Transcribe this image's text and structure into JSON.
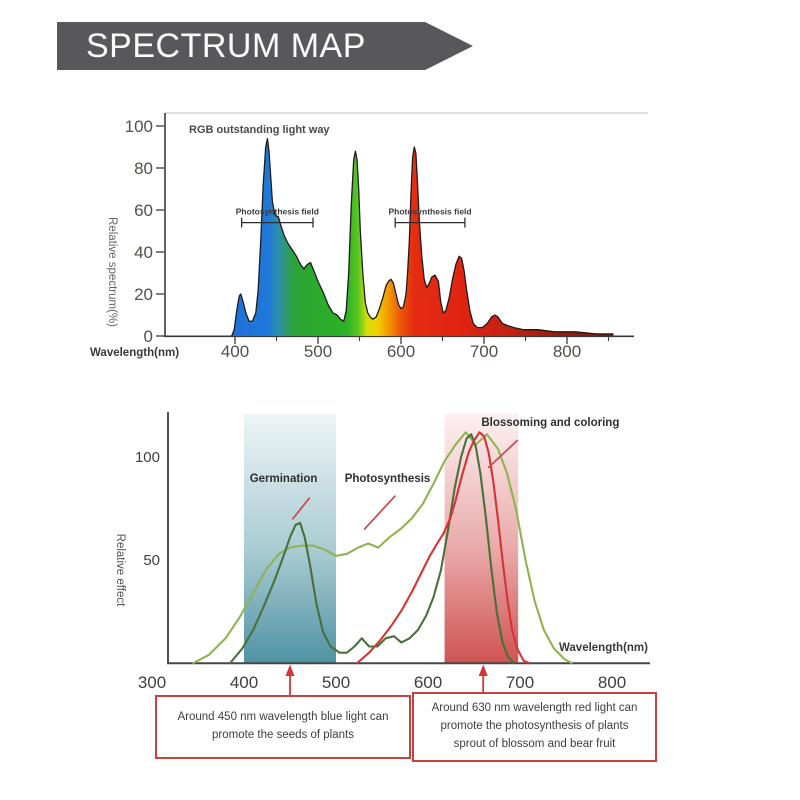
{
  "header": {
    "title": "SPECTRUM MAP",
    "banner_color": "#58585a",
    "text_color": "#fbfbfb"
  },
  "colors": {
    "accent_red": "#c94040",
    "axis": "#3a3a3a",
    "tick_text": "#554f49",
    "teal_band_bottom": "#4f93a4",
    "red_band_bottom": "#d05353"
  },
  "chart_data": [
    {
      "type": "area",
      "name": "rgb-spectrum-chart",
      "annotation_title": "RGB outstanding light way",
      "xlabel": "Wavelength(nm)",
      "ylabel": "Relative spectrum(%)",
      "xlim": [
        390,
        865
      ],
      "ylim": [
        0,
        105
      ],
      "x_ticks": [
        400,
        500,
        600,
        700,
        800
      ],
      "x_minor_ticks": [
        450,
        550,
        650,
        750,
        850
      ],
      "y_ticks": [
        0,
        20,
        40,
        60,
        80,
        100
      ],
      "grid": false,
      "brackets": [
        {
          "label": "Photosynthesis field",
          "x_start": 408,
          "x_end": 494,
          "y": 54
        },
        {
          "label": "Photosynthesis field",
          "x_start": 593,
          "x_end": 677,
          "y": 54
        }
      ],
      "series": [
        {
          "name": "spectrum",
          "points": [
            [
              396,
              0
            ],
            [
              399,
              3
            ],
            [
              402,
              12
            ],
            [
              405,
              19
            ],
            [
              407,
              20
            ],
            [
              410,
              16
            ],
            [
              413,
              11
            ],
            [
              417,
              7
            ],
            [
              421,
              7
            ],
            [
              425,
              11
            ],
            [
              428,
              22
            ],
            [
              431,
              45
            ],
            [
              434,
              72
            ],
            [
              437,
              90
            ],
            [
              439,
              94
            ],
            [
              441,
              88
            ],
            [
              443,
              76
            ],
            [
              445,
              64
            ],
            [
              448,
              58
            ],
            [
              450,
              57
            ],
            [
              452,
              57
            ],
            [
              455,
              53
            ],
            [
              459,
              48
            ],
            [
              464,
              44
            ],
            [
              469,
              41
            ],
            [
              474,
              38
            ],
            [
              479,
              34
            ],
            [
              483,
              32
            ],
            [
              487,
              34
            ],
            [
              491,
              35
            ],
            [
              495,
              31
            ],
            [
              500,
              26
            ],
            [
              506,
              21
            ],
            [
              512,
              15
            ],
            [
              518,
              11
            ],
            [
              523,
              10
            ],
            [
              527,
              8
            ],
            [
              531,
              7
            ],
            [
              534,
              12
            ],
            [
              537,
              30
            ],
            [
              540,
              62
            ],
            [
              543,
              84
            ],
            [
              545,
              88
            ],
            [
              547,
              84
            ],
            [
              549,
              70
            ],
            [
              551,
              50
            ],
            [
              554,
              30
            ],
            [
              557,
              16
            ],
            [
              560,
              11
            ],
            [
              563,
              9
            ],
            [
              566,
              8
            ],
            [
              570,
              9
            ],
            [
              574,
              13
            ],
            [
              578,
              18
            ],
            [
              582,
              24
            ],
            [
              585,
              26
            ],
            [
              588,
              27
            ],
            [
              591,
              25
            ],
            [
              594,
              20
            ],
            [
              597,
              15
            ],
            [
              600,
              13
            ],
            [
              603,
              14
            ],
            [
              606,
              20
            ],
            [
              608,
              30
            ],
            [
              610,
              45
            ],
            [
              612,
              68
            ],
            [
              614,
              85
            ],
            [
              616,
              90
            ],
            [
              618,
              87
            ],
            [
              620,
              72
            ],
            [
              622,
              55
            ],
            [
              625,
              38
            ],
            [
              628,
              27
            ],
            [
              631,
              23
            ],
            [
              634,
              25
            ],
            [
              637,
              28
            ],
            [
              641,
              29
            ],
            [
              645,
              26
            ],
            [
              648,
              16
            ],
            [
              651,
              11
            ],
            [
              654,
              12
            ],
            [
              658,
              18
            ],
            [
              662,
              27
            ],
            [
              666,
              34
            ],
            [
              670,
              38
            ],
            [
              673,
              37
            ],
            [
              676,
              31
            ],
            [
              679,
              22
            ],
            [
              683,
              12
            ],
            [
              687,
              6
            ],
            [
              692,
              4
            ],
            [
              698,
              4
            ],
            [
              704,
              6
            ],
            [
              709,
              9
            ],
            [
              713,
              10
            ],
            [
              717,
              9
            ],
            [
              722,
              6
            ],
            [
              728,
              5
            ],
            [
              736,
              4
            ],
            [
              748,
              3
            ],
            [
              765,
              3
            ],
            [
              785,
              2
            ],
            [
              810,
              2
            ],
            [
              835,
              1
            ],
            [
              856,
              1
            ]
          ]
        }
      ]
    },
    {
      "type": "line",
      "name": "plant-light-effect-chart",
      "xlabel": "Wavelength(nm)",
      "ylabel": "Relative effect",
      "xlim": [
        300,
        855
      ],
      "ylim": [
        0,
        125
      ],
      "x_ticks": [
        300,
        400,
        500,
        600,
        700,
        800
      ],
      "y_ticks": [
        50,
        100
      ],
      "grid": false,
      "bands": [
        {
          "name": "blue-light-band",
          "x_start": 400,
          "x_end": 500,
          "color_bottom": "#4f93a4"
        },
        {
          "name": "red-light-band",
          "x_start": 618,
          "x_end": 698,
          "color_bottom": "#d05353"
        }
      ],
      "series": [
        {
          "name": "Photosynthesis",
          "color": "#8fb353",
          "points": [
            [
              345,
              0
            ],
            [
              362,
              4
            ],
            [
              380,
              12
            ],
            [
              395,
              22
            ],
            [
              410,
              34
            ],
            [
              425,
              46
            ],
            [
              438,
              53
            ],
            [
              450,
              56
            ],
            [
              462,
              57
            ],
            [
              475,
              57
            ],
            [
              488,
              55
            ],
            [
              500,
              52
            ],
            [
              512,
              53
            ],
            [
              524,
              56
            ],
            [
              535,
              58
            ],
            [
              546,
              56
            ],
            [
              558,
              61
            ],
            [
              570,
              65
            ],
            [
              582,
              70
            ],
            [
              594,
              77
            ],
            [
              606,
              87
            ],
            [
              618,
              98
            ],
            [
              630,
              106
            ],
            [
              641,
              112
            ],
            [
              652,
              106
            ],
            [
              664,
              111
            ],
            [
              676,
              104
            ],
            [
              686,
              92
            ],
            [
              696,
              74
            ],
            [
              706,
              50
            ],
            [
              716,
              30
            ],
            [
              726,
              16
            ],
            [
              737,
              7
            ],
            [
              748,
              2
            ],
            [
              756,
              0
            ]
          ]
        },
        {
          "name": "Germination",
          "color": "#49703b",
          "points": [
            [
              385,
              0
            ],
            [
              398,
              7
            ],
            [
              410,
              16
            ],
            [
              422,
              28
            ],
            [
              433,
              40
            ],
            [
              443,
              52
            ],
            [
              450,
              61
            ],
            [
              456,
              67
            ],
            [
              461,
              68
            ],
            [
              466,
              61
            ],
            [
              472,
              47
            ],
            [
              479,
              28
            ],
            [
              486,
              15
            ],
            [
              494,
              8
            ],
            [
              504,
              5
            ],
            [
              512,
              5
            ],
            [
              520,
              8
            ],
            [
              528,
              12
            ],
            [
              536,
              8
            ],
            [
              545,
              8
            ],
            [
              554,
              12
            ],
            [
              563,
              13
            ],
            [
              571,
              10
            ],
            [
              580,
              12
            ],
            [
              589,
              16
            ],
            [
              598,
              23
            ],
            [
              606,
              32
            ],
            [
              614,
              45
            ],
            [
              622,
              65
            ],
            [
              629,
              85
            ],
            [
              636,
              100
            ],
            [
              642,
              109
            ],
            [
              647,
              111
            ],
            [
              652,
              105
            ],
            [
              657,
              92
            ],
            [
              663,
              70
            ],
            [
              669,
              45
            ],
            [
              675,
              24
            ],
            [
              681,
              10
            ],
            [
              687,
              3
            ],
            [
              693,
              0
            ]
          ]
        },
        {
          "name": "Blossoming and coloring",
          "color": "#d73333",
          "points": [
            [
              523,
              0
            ],
            [
              536,
              5
            ],
            [
              548,
              11
            ],
            [
              560,
              18
            ],
            [
              572,
              26
            ],
            [
              583,
              35
            ],
            [
              593,
              44
            ],
            [
              602,
              52
            ],
            [
              610,
              58
            ],
            [
              617,
              63
            ],
            [
              624,
              70
            ],
            [
              630,
              79
            ],
            [
              637,
              91
            ],
            [
              644,
              102
            ],
            [
              650,
              108
            ],
            [
              656,
              112
            ],
            [
              661,
              110
            ],
            [
              666,
              102
            ],
            [
              671,
              88
            ],
            [
              676,
              70
            ],
            [
              681,
              50
            ],
            [
              686,
              32
            ],
            [
              691,
              17
            ],
            [
              697,
              7
            ],
            [
              704,
              1
            ],
            [
              710,
              0
            ]
          ]
        }
      ],
      "labels": [
        {
          "text": "Germination",
          "x": 443,
          "y": 86,
          "leader": [
            [
              471,
              80
            ],
            [
              453,
              70
            ]
          ]
        },
        {
          "text": "Photosynthesis",
          "x": 556,
          "y": 86,
          "leader": [
            [
              564,
              81
            ],
            [
              531,
              65
            ]
          ]
        },
        {
          "text": "Blossoming and coloring",
          "x": 733,
          "y": 113,
          "leader": [
            [
              697,
              108
            ],
            [
              666,
              95
            ]
          ]
        }
      ],
      "arrows_nm": [
        450,
        660
      ]
    }
  ],
  "notes": [
    {
      "lines": [
        "Around 450 nm wavelength blue light can",
        "promote the seeds of plants"
      ]
    },
    {
      "lines": [
        "Around 630 nm wavelength red light can",
        "promote the photosynthesis of plants",
        "sprout of blossom and bear fruit"
      ]
    }
  ]
}
